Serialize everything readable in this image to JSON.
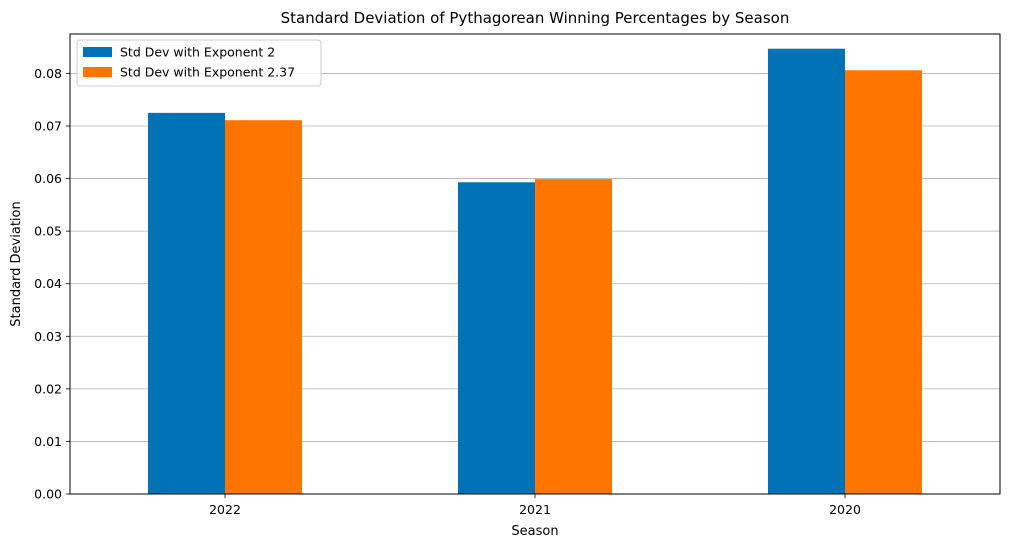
{
  "chart_data": {
    "type": "bar",
    "title": "Standard Deviation of Pythagorean Winning Percentages by Season",
    "xlabel": "Season",
    "ylabel": "Standard Deviation",
    "categories": [
      "2022",
      "2021",
      "2020"
    ],
    "series": [
      {
        "name": "Std Dev with Exponent 2",
        "color": "#0072b5",
        "values": [
          0.0725,
          0.0593,
          0.0847
        ]
      },
      {
        "name": "Std Dev with Exponent 2.37",
        "color": "#ff7500",
        "values": [
          0.0711,
          0.0599,
          0.0806
        ]
      }
    ],
    "ylim": [
      0,
      0.0875
    ],
    "yticks": [
      0.0,
      0.01,
      0.02,
      0.03,
      0.04,
      0.05,
      0.06,
      0.07,
      0.08
    ],
    "ytick_labels": [
      "0.00",
      "0.01",
      "0.02",
      "0.03",
      "0.04",
      "0.05",
      "0.06",
      "0.07",
      "0.08"
    ],
    "grid": "y-major",
    "legend_position": "upper-left"
  }
}
